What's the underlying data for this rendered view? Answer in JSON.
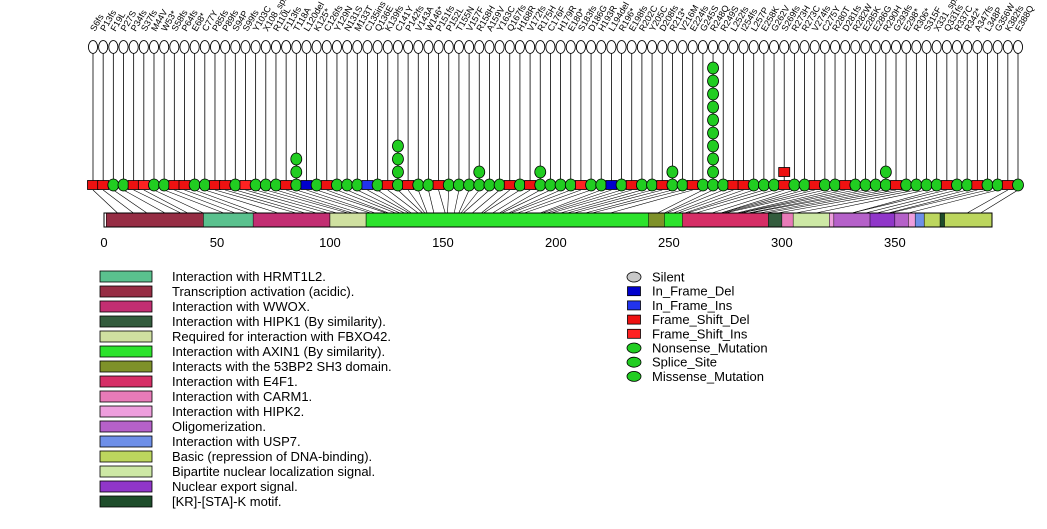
{
  "chart_data": {
    "type": "lollipop-mutation-diagram",
    "title": "",
    "protein_length": 393,
    "x_ticks": [
      0,
      50,
      100,
      150,
      200,
      250,
      300,
      350
    ],
    "grid": false,
    "marker_styles": {
      "Silent": {
        "color": "#C8C8C8",
        "shape": "ellipse"
      },
      "In_Frame_Del": {
        "color": "#0000CD",
        "shape": "rect"
      },
      "In_Frame_Ins": {
        "color": "#2233EE",
        "shape": "rect"
      },
      "Frame_Shift_Del": {
        "color": "#EE1111",
        "shape": "rect"
      },
      "Frame_Shift_Ins": {
        "color": "#FF2222",
        "shape": "rect"
      },
      "Nonsense_Mutation": {
        "color": "#21CD21",
        "shape": "ellipse"
      },
      "Splice_Site": {
        "color": "#21CD21",
        "shape": "ellipse"
      },
      "Missense_Mutation": {
        "color": "#21CD21",
        "shape": "ellipse"
      }
    },
    "mutation_type_legend": [
      "Silent",
      "In_Frame_Del",
      "In_Frame_Ins",
      "Frame_Shift_Del",
      "Frame_Shift_Ins",
      "Nonsense_Mutation",
      "Splice_Site",
      "Missense_Mutation"
    ],
    "domains": [
      {
        "name": "Interaction with HRMT1L2.",
        "start": 1,
        "end": 83,
        "color": "#5AC18E"
      },
      {
        "name": "Transcription activation (acidic).",
        "start": 1,
        "end": 44,
        "color": "#962D44"
      },
      {
        "name": "Interaction with WWOX.",
        "start": 66,
        "end": 110,
        "color": "#C22E72"
      },
      {
        "name": "Interaction with HIPK1 (By similarity).",
        "start": 100,
        "end": 370,
        "color": "#335C3D"
      },
      {
        "name": "Required for interaction with FBXO42.",
        "start": 100,
        "end": 116,
        "color": "#CFE0A0"
      },
      {
        "name": "Interaction with AXIN1 (By similarity).",
        "start": 116,
        "end": 292,
        "color": "#2CE32C"
      },
      {
        "name": "Interacts with the 53BP2 SH3 domain.",
        "start": 241,
        "end": 248,
        "color": "#7E9129"
      },
      {
        "name": "Interaction with E4F1.",
        "start": 256,
        "end": 294,
        "color": "#D62E66"
      },
      {
        "name": "Interaction with CARM1.",
        "start": 300,
        "end": 393,
        "color": "#E87BB8"
      },
      {
        "name": "Interaction with HIPK2.",
        "start": 319,
        "end": 360,
        "color": "#EE9EDD"
      },
      {
        "name": "Oligomerization.",
        "start": 323,
        "end": 356,
        "color": "#B561C9"
      },
      {
        "name": "Interaction with USP7.",
        "start": 359,
        "end": 363,
        "color": "#6E8FE8"
      },
      {
        "name": "Basic (repression of DNA-binding).",
        "start": 363,
        "end": 393,
        "color": "#BCD65E"
      },
      {
        "name": "Bipartite nuclear localization signal.",
        "start": 305,
        "end": 321,
        "color": "#CDE8A5"
      },
      {
        "name": "Nuclear export signal.",
        "start": 339,
        "end": 350,
        "color": "#9036C9"
      },
      {
        "name": "[KR]-[STA]-K motif.",
        "start": 370,
        "end": 372,
        "color": "#1E4D2B"
      }
    ],
    "mutations": [
      {
        "label": "S6fs",
        "pos": 6,
        "type": "Frame_Shift_Del",
        "count": 1
      },
      {
        "label": "P13fs",
        "pos": 13,
        "type": "Frame_Shift_Del",
        "count": 1
      },
      {
        "label": "F19L",
        "pos": 19,
        "type": "Missense_Mutation",
        "count": 1
      },
      {
        "label": "P27S",
        "pos": 27,
        "type": "Missense_Mutation",
        "count": 1
      },
      {
        "label": "P34fs",
        "pos": 34,
        "type": "Frame_Shift_Del",
        "count": 1
      },
      {
        "label": "S37fs",
        "pos": 37,
        "type": "Frame_Shift_Ins",
        "count": 1
      },
      {
        "label": "M44V",
        "pos": 44,
        "type": "Missense_Mutation",
        "count": 1
      },
      {
        "label": "W53*",
        "pos": 53,
        "type": "Nonsense_Mutation",
        "count": 1
      },
      {
        "label": "S58fs",
        "pos": 58,
        "type": "Frame_Shift_Del",
        "count": 1
      },
      {
        "label": "P64fs",
        "pos": 64,
        "type": "Frame_Shift_Del",
        "count": 1
      },
      {
        "label": "E68*",
        "pos": 68,
        "type": "Nonsense_Mutation",
        "count": 1
      },
      {
        "label": "C77Y",
        "pos": 77,
        "type": "Missense_Mutation",
        "count": 1
      },
      {
        "label": "P85fs",
        "pos": 85,
        "type": "Frame_Shift_Del",
        "count": 1
      },
      {
        "label": "P89fs",
        "pos": 89,
        "type": "Frame_Shift_Del",
        "count": 1
      },
      {
        "label": "S94P",
        "pos": 94,
        "type": "Missense_Mutation",
        "count": 1
      },
      {
        "label": "S99fs",
        "pos": 99,
        "type": "Frame_Shift_Ins",
        "count": 1
      },
      {
        "label": "Y103C",
        "pos": 103,
        "type": "Missense_Mutation",
        "count": 1
      },
      {
        "label": "X108_splice",
        "pos": 108,
        "type": "Splice_Site",
        "count": 1
      },
      {
        "label": "R110L",
        "pos": 110,
        "type": "Missense_Mutation",
        "count": 1
      },
      {
        "label": "F113fs",
        "pos": 113,
        "type": "Frame_Shift_Del",
        "count": 1
      },
      {
        "label": "T118A",
        "pos": 118,
        "type": "Missense_Mutation",
        "count": 3
      },
      {
        "label": "L120del",
        "pos": 120,
        "type": "In_Frame_Del",
        "count": 1
      },
      {
        "label": "K125*",
        "pos": 125,
        "type": "Nonsense_Mutation",
        "count": 1
      },
      {
        "label": "C126fs",
        "pos": 126,
        "type": "Frame_Shift_Del",
        "count": 1
      },
      {
        "label": "Y129N",
        "pos": 129,
        "type": "Missense_Mutation",
        "count": 1
      },
      {
        "label": "N131S",
        "pos": 131,
        "type": "Missense_Mutation",
        "count": 1
      },
      {
        "label": "M133T",
        "pos": 133,
        "type": "Missense_Mutation",
        "count": 1
      },
      {
        "label": "C135ins",
        "pos": 135,
        "type": "In_Frame_Ins",
        "count": 1
      },
      {
        "label": "Q136E",
        "pos": 136,
        "type": "Missense_Mutation",
        "count": 1
      },
      {
        "label": "K139fs",
        "pos": 139,
        "type": "Frame_Shift_Del",
        "count": 1
      },
      {
        "label": "C141Y",
        "pos": 141,
        "type": "Missense_Mutation",
        "count": 4
      },
      {
        "label": "P142fs",
        "pos": 142,
        "type": "Frame_Shift_Del",
        "count": 1
      },
      {
        "label": "V143A",
        "pos": 143,
        "type": "Missense_Mutation",
        "count": 1
      },
      {
        "label": "W146*",
        "pos": 146,
        "type": "Nonsense_Mutation",
        "count": 1
      },
      {
        "label": "P151fs",
        "pos": 151,
        "type": "Frame_Shift_Del",
        "count": 1
      },
      {
        "label": "P152L",
        "pos": 152,
        "type": "Missense_Mutation",
        "count": 1
      },
      {
        "label": "T155N",
        "pos": 155,
        "type": "Missense_Mutation",
        "count": 1
      },
      {
        "label": "V157F",
        "pos": 157,
        "type": "Missense_Mutation",
        "count": 1
      },
      {
        "label": "R158H",
        "pos": 158,
        "type": "Missense_Mutation",
        "count": 2
      },
      {
        "label": "A159V",
        "pos": 159,
        "type": "Missense_Mutation",
        "count": 1
      },
      {
        "label": "Y163C",
        "pos": 163,
        "type": "Missense_Mutation",
        "count": 1
      },
      {
        "label": "Q167fs",
        "pos": 167,
        "type": "Frame_Shift_Del",
        "count": 1
      },
      {
        "label": "H168R",
        "pos": 168,
        "type": "Missense_Mutation",
        "count": 1
      },
      {
        "label": "V172fs",
        "pos": 172,
        "type": "Frame_Shift_Del",
        "count": 1
      },
      {
        "label": "R175H",
        "pos": 175,
        "type": "Missense_Mutation",
        "count": 2
      },
      {
        "label": "C176F",
        "pos": 176,
        "type": "Missense_Mutation",
        "count": 1
      },
      {
        "label": "H179R",
        "pos": 179,
        "type": "Missense_Mutation",
        "count": 1
      },
      {
        "label": "E180*",
        "pos": 180,
        "type": "Nonsense_Mutation",
        "count": 1
      },
      {
        "label": "S183fs",
        "pos": 183,
        "type": "Frame_Shift_Ins",
        "count": 1
      },
      {
        "label": "D186G",
        "pos": 186,
        "type": "Missense_Mutation",
        "count": 1
      },
      {
        "label": "H193R",
        "pos": 193,
        "type": "Missense_Mutation",
        "count": 1
      },
      {
        "label": "L194del",
        "pos": 194,
        "type": "In_Frame_Del",
        "count": 1
      },
      {
        "label": "R196*",
        "pos": 196,
        "type": "Nonsense_Mutation",
        "count": 1
      },
      {
        "label": "E198fs",
        "pos": 198,
        "type": "Frame_Shift_Del",
        "count": 1
      },
      {
        "label": "R202C",
        "pos": 202,
        "type": "Missense_Mutation",
        "count": 1
      },
      {
        "label": "Y205C",
        "pos": 205,
        "type": "Missense_Mutation",
        "count": 1
      },
      {
        "label": "D208fs",
        "pos": 208,
        "type": "Frame_Shift_Del",
        "count": 1
      },
      {
        "label": "R213*",
        "pos": 213,
        "type": "Nonsense_Mutation",
        "count": 2
      },
      {
        "label": "V216M",
        "pos": 216,
        "type": "Missense_Mutation",
        "count": 1
      },
      {
        "label": "E224fs",
        "pos": 224,
        "type": "Frame_Shift_Del",
        "count": 1
      },
      {
        "label": "G245S",
        "pos": 245,
        "type": "Missense_Mutation",
        "count": 1
      },
      {
        "label": "R248Q",
        "pos": 248,
        "type": "Missense_Mutation",
        "count": 10
      },
      {
        "label": "R249S",
        "pos": 249,
        "type": "Missense_Mutation",
        "count": 1
      },
      {
        "label": "L252fs",
        "pos": 252,
        "type": "Frame_Shift_Del",
        "count": 1
      },
      {
        "label": "I254fs",
        "pos": 254,
        "type": "Frame_Shift_Del",
        "count": 1
      },
      {
        "label": "L257P",
        "pos": 257,
        "type": "Missense_Mutation",
        "count": 1
      },
      {
        "label": "E258K",
        "pos": 258,
        "type": "Missense_Mutation",
        "count": 1
      },
      {
        "label": "G262V",
        "pos": 262,
        "type": "Missense_Mutation",
        "count": 1
      },
      {
        "label": "S269fs",
        "pos": 269,
        "type": "Frame_Shift_Del",
        "count": 2
      },
      {
        "label": "R273H",
        "pos": 273,
        "type": "Missense_Mutation",
        "count": 1
      },
      {
        "label": "R273C",
        "pos": 273,
        "type": "Missense_Mutation",
        "count": 1
      },
      {
        "label": "V274fs",
        "pos": 274,
        "type": "Frame_Shift_Del",
        "count": 1
      },
      {
        "label": "C275Y",
        "pos": 275,
        "type": "Missense_Mutation",
        "count": 1
      },
      {
        "label": "R280T",
        "pos": 280,
        "type": "Missense_Mutation",
        "count": 1
      },
      {
        "label": "D281fs",
        "pos": 281,
        "type": "Frame_Shift_Del",
        "count": 1
      },
      {
        "label": "R282W",
        "pos": 282,
        "type": "Missense_Mutation",
        "count": 1
      },
      {
        "label": "E285K",
        "pos": 285,
        "type": "Missense_Mutation",
        "count": 1
      },
      {
        "label": "E286G",
        "pos": 286,
        "type": "Missense_Mutation",
        "count": 1
      },
      {
        "label": "R290H",
        "pos": 290,
        "type": "Missense_Mutation",
        "count": 2
      },
      {
        "label": "G293fs",
        "pos": 293,
        "type": "Frame_Shift_Del",
        "count": 1
      },
      {
        "label": "E298*",
        "pos": 298,
        "type": "Nonsense_Mutation",
        "count": 1
      },
      {
        "label": "R306*",
        "pos": 306,
        "type": "Nonsense_Mutation",
        "count": 1
      },
      {
        "label": "S315F",
        "pos": 315,
        "type": "Missense_Mutation",
        "count": 1
      },
      {
        "label": "X331_splice",
        "pos": 331,
        "type": "Splice_Site",
        "count": 1
      },
      {
        "label": "Q331fs",
        "pos": 331,
        "type": "Frame_Shift_Del",
        "count": 1
      },
      {
        "label": "R337C",
        "pos": 337,
        "type": "Missense_Mutation",
        "count": 1
      },
      {
        "label": "R342*",
        "pos": 342,
        "type": "Nonsense_Mutation",
        "count": 1
      },
      {
        "label": "A347fs",
        "pos": 347,
        "type": "Frame_Shift_Del",
        "count": 1
      },
      {
        "label": "L348P",
        "pos": 348,
        "type": "Missense_Mutation",
        "count": 1
      },
      {
        "label": "G356W",
        "pos": 356,
        "type": "Missense_Mutation",
        "count": 1
      },
      {
        "label": "K382fs",
        "pos": 382,
        "type": "Frame_Shift_Del",
        "count": 1
      },
      {
        "label": "E388Q",
        "pos": 388,
        "type": "Missense_Mutation",
        "count": 1
      }
    ]
  }
}
